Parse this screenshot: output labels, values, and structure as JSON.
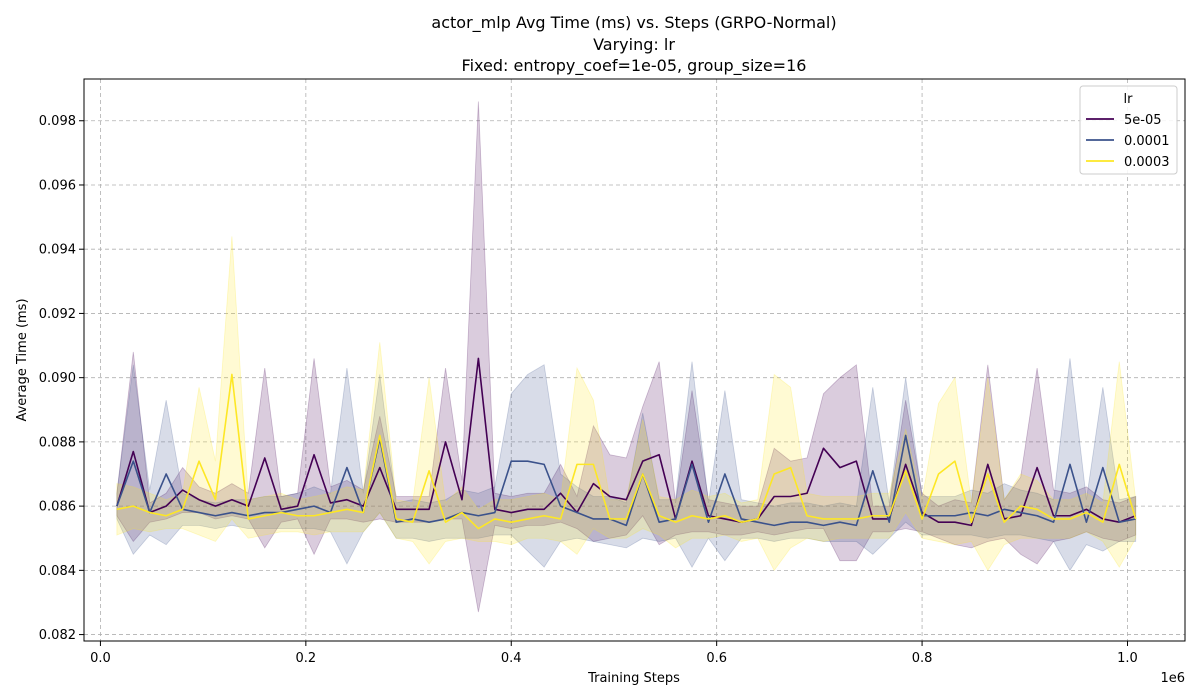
{
  "chart_data": {
    "type": "line",
    "title_lines": [
      "actor_mlp Avg Time (ms) vs. Steps (GRPO-Normal)",
      "Varying: lr",
      "Fixed: entropy_coef=1e-05, group_size=16"
    ],
    "xlabel": "Training Steps",
    "ylabel": "Average Time (ms)",
    "x_offset_label": "1e6",
    "xlim": [
      -0.016,
      1.056
    ],
    "ylim": [
      0.0818,
      0.0993
    ],
    "x_ticks": [
      0.0,
      0.2,
      0.4,
      0.6,
      0.8,
      1.0
    ],
    "x_tick_labels": [
      "0.0",
      "0.2",
      "0.4",
      "0.6",
      "0.8",
      "1.0"
    ],
    "y_ticks": [
      0.082,
      0.084,
      0.086,
      0.088,
      0.09,
      0.092,
      0.094,
      0.096,
      0.098
    ],
    "y_tick_labels": [
      "0.082",
      "0.084",
      "0.086",
      "0.088",
      "0.090",
      "0.092",
      "0.094",
      "0.096",
      "0.098"
    ],
    "grid": true,
    "legend": {
      "title": "lr",
      "placement": "top-right"
    },
    "x": [
      0.016,
      0.032,
      0.048,
      0.064,
      0.08,
      0.096,
      0.112,
      0.128,
      0.144,
      0.16,
      0.176,
      0.192,
      0.208,
      0.224,
      0.24,
      0.256,
      0.272,
      0.288,
      0.304,
      0.32,
      0.336,
      0.352,
      0.368,
      0.384,
      0.4,
      0.416,
      0.432,
      0.448,
      0.464,
      0.48,
      0.496,
      0.512,
      0.528,
      0.544,
      0.56,
      0.576,
      0.592,
      0.608,
      0.624,
      0.64,
      0.656,
      0.672,
      0.688,
      0.704,
      0.72,
      0.736,
      0.752,
      0.768,
      0.784,
      0.8,
      0.816,
      0.832,
      0.848,
      0.864,
      0.88,
      0.896,
      0.912,
      0.928,
      0.944,
      0.96,
      0.976,
      0.992,
      1.008
    ],
    "series": [
      {
        "name": "5e-05",
        "color": "#440154",
        "values": [
          0.086,
          0.0877,
          0.0858,
          0.086,
          0.0865,
          0.0862,
          0.086,
          0.0862,
          0.086,
          0.0875,
          0.0859,
          0.086,
          0.0876,
          0.0861,
          0.0862,
          0.086,
          0.0872,
          0.0859,
          0.0859,
          0.0859,
          0.088,
          0.0862,
          0.0906,
          0.0859,
          0.0858,
          0.0859,
          0.0859,
          0.0864,
          0.0858,
          0.0867,
          0.0863,
          0.0862,
          0.0874,
          0.0876,
          0.0856,
          0.0874,
          0.0857,
          0.0856,
          0.0855,
          0.0856,
          0.0863,
          0.0863,
          0.0864,
          0.0878,
          0.0872,
          0.0874,
          0.0856,
          0.0856,
          0.0873,
          0.0858,
          0.0855,
          0.0855,
          0.0854,
          0.0873,
          0.0856,
          0.0857,
          0.0872,
          0.0857,
          0.0857,
          0.0859,
          0.0856,
          0.0855,
          0.0857
        ],
        "lower": [
          0.0857,
          0.0849,
          0.0855,
          0.0856,
          0.0858,
          0.0858,
          0.0856,
          0.0857,
          0.0856,
          0.0847,
          0.0855,
          0.0856,
          0.0845,
          0.0856,
          0.0856,
          0.0855,
          0.0856,
          0.0855,
          0.0855,
          0.0855,
          0.0856,
          0.0856,
          0.0827,
          0.0854,
          0.0853,
          0.0854,
          0.0854,
          0.0855,
          0.0853,
          0.0849,
          0.085,
          0.0851,
          0.0857,
          0.0848,
          0.0851,
          0.0852,
          0.0852,
          0.0851,
          0.0851,
          0.0852,
          0.0851,
          0.0852,
          0.0853,
          0.0853,
          0.0843,
          0.0843,
          0.0852,
          0.0852,
          0.0853,
          0.0852,
          0.085,
          0.0848,
          0.0847,
          0.0849,
          0.085,
          0.0845,
          0.0842,
          0.0849,
          0.085,
          0.0852,
          0.085,
          0.0849,
          0.0851
        ],
        "upper": [
          0.0864,
          0.0908,
          0.0861,
          0.0864,
          0.0872,
          0.0866,
          0.0864,
          0.0867,
          0.0864,
          0.0903,
          0.0863,
          0.0864,
          0.0906,
          0.0866,
          0.0868,
          0.0865,
          0.0888,
          0.0863,
          0.0863,
          0.0863,
          0.0903,
          0.0868,
          0.0986,
          0.0864,
          0.0863,
          0.0864,
          0.0864,
          0.0873,
          0.0863,
          0.0885,
          0.0876,
          0.0875,
          0.0891,
          0.0905,
          0.0861,
          0.0896,
          0.0862,
          0.0861,
          0.086,
          0.086,
          0.0878,
          0.0874,
          0.0875,
          0.0895,
          0.09,
          0.0904,
          0.086,
          0.086,
          0.0893,
          0.0864,
          0.086,
          0.0862,
          0.0861,
          0.0904,
          0.0862,
          0.0869,
          0.0903,
          0.0865,
          0.0864,
          0.0866,
          0.0862,
          0.0861,
          0.0863
        ]
      },
      {
        "name": "0.0001",
        "color": "#3b528b",
        "values": [
          0.086,
          0.0874,
          0.0858,
          0.087,
          0.0859,
          0.0858,
          0.0857,
          0.0858,
          0.0857,
          0.0858,
          0.0858,
          0.0859,
          0.086,
          0.0858,
          0.0872,
          0.0858,
          0.0881,
          0.0855,
          0.0856,
          0.0855,
          0.0856,
          0.0858,
          0.0857,
          0.0858,
          0.0874,
          0.0874,
          0.0873,
          0.086,
          0.0858,
          0.0856,
          0.0856,
          0.0854,
          0.087,
          0.0855,
          0.0856,
          0.0873,
          0.0855,
          0.087,
          0.0856,
          0.0855,
          0.0854,
          0.0855,
          0.0855,
          0.0854,
          0.0855,
          0.0854,
          0.0871,
          0.0855,
          0.0882,
          0.0857,
          0.0857,
          0.0857,
          0.0858,
          0.0857,
          0.0859,
          0.0858,
          0.0857,
          0.0855,
          0.0873,
          0.0855,
          0.0872,
          0.0855,
          0.0856
        ],
        "lower": [
          0.0856,
          0.0845,
          0.0851,
          0.0848,
          0.0854,
          0.0854,
          0.0853,
          0.0854,
          0.0853,
          0.0853,
          0.0853,
          0.0853,
          0.0853,
          0.0852,
          0.0842,
          0.0852,
          0.0858,
          0.085,
          0.085,
          0.0849,
          0.085,
          0.085,
          0.085,
          0.0851,
          0.0851,
          0.0846,
          0.0841,
          0.0849,
          0.085,
          0.0849,
          0.0848,
          0.0847,
          0.085,
          0.0849,
          0.085,
          0.0841,
          0.085,
          0.0843,
          0.085,
          0.085,
          0.0849,
          0.085,
          0.085,
          0.0849,
          0.0849,
          0.0849,
          0.0845,
          0.085,
          0.0855,
          0.0851,
          0.0851,
          0.0851,
          0.0851,
          0.085,
          0.0851,
          0.0851,
          0.085,
          0.0849,
          0.084,
          0.0848,
          0.0846,
          0.0849,
          0.0849
        ],
        "upper": [
          0.0864,
          0.0904,
          0.0865,
          0.0893,
          0.0864,
          0.0862,
          0.0861,
          0.0862,
          0.0862,
          0.0863,
          0.0863,
          0.0864,
          0.0866,
          0.0864,
          0.0903,
          0.0864,
          0.0901,
          0.0861,
          0.0862,
          0.0861,
          0.0862,
          0.0865,
          0.0864,
          0.0866,
          0.0895,
          0.0901,
          0.0904,
          0.087,
          0.0866,
          0.0863,
          0.0863,
          0.0861,
          0.0889,
          0.0862,
          0.0862,
          0.0905,
          0.0861,
          0.0896,
          0.0862,
          0.0861,
          0.086,
          0.0861,
          0.0861,
          0.086,
          0.0861,
          0.086,
          0.0897,
          0.0861,
          0.09,
          0.0863,
          0.0863,
          0.0863,
          0.0865,
          0.0864,
          0.0867,
          0.0865,
          0.0864,
          0.0862,
          0.0906,
          0.0862,
          0.0897,
          0.0862,
          0.0863
        ]
      },
      {
        "name": "0.0003",
        "color": "#fde725",
        "values": [
          0.0859,
          0.086,
          0.0858,
          0.0857,
          0.0859,
          0.0874,
          0.0862,
          0.0901,
          0.0856,
          0.0857,
          0.0858,
          0.0857,
          0.0857,
          0.0858,
          0.0859,
          0.0858,
          0.0882,
          0.0856,
          0.0855,
          0.0871,
          0.0855,
          0.0858,
          0.0853,
          0.0856,
          0.0855,
          0.0856,
          0.0857,
          0.0856,
          0.0873,
          0.0873,
          0.0856,
          0.0856,
          0.087,
          0.0857,
          0.0855,
          0.0857,
          0.0856,
          0.0857,
          0.0855,
          0.0856,
          0.087,
          0.0872,
          0.0857,
          0.0856,
          0.0856,
          0.0856,
          0.0857,
          0.0857,
          0.0871,
          0.0856,
          0.087,
          0.0874,
          0.0855,
          0.087,
          0.0855,
          0.086,
          0.0859,
          0.0856,
          0.0856,
          0.0858,
          0.0855,
          0.0873,
          0.0856
        ],
        "lower": [
          0.0851,
          0.0853,
          0.0852,
          0.0853,
          0.0853,
          0.0851,
          0.0849,
          0.0856,
          0.085,
          0.0851,
          0.0852,
          0.0852,
          0.0851,
          0.0852,
          0.0852,
          0.0852,
          0.0858,
          0.085,
          0.0849,
          0.0842,
          0.0849,
          0.085,
          0.0849,
          0.0849,
          0.0848,
          0.085,
          0.085,
          0.0849,
          0.0845,
          0.0853,
          0.085,
          0.085,
          0.0853,
          0.0851,
          0.0847,
          0.085,
          0.085,
          0.0851,
          0.0849,
          0.085,
          0.084,
          0.0847,
          0.085,
          0.0849,
          0.085,
          0.085,
          0.085,
          0.085,
          0.0858,
          0.085,
          0.0849,
          0.0848,
          0.0849,
          0.084,
          0.0848,
          0.085,
          0.085,
          0.085,
          0.085,
          0.0852,
          0.0849,
          0.0841,
          0.085
        ],
        "upper": [
          0.0867,
          0.0866,
          0.0864,
          0.0862,
          0.0864,
          0.0897,
          0.0874,
          0.0944,
          0.0862,
          0.0863,
          0.0864,
          0.0862,
          0.0863,
          0.0864,
          0.0866,
          0.0865,
          0.0911,
          0.0862,
          0.0861,
          0.09,
          0.0861,
          0.0866,
          0.0859,
          0.0862,
          0.0862,
          0.0863,
          0.0864,
          0.0862,
          0.0903,
          0.0893,
          0.0862,
          0.0862,
          0.0887,
          0.0863,
          0.0862,
          0.0865,
          0.0863,
          0.0864,
          0.0861,
          0.0862,
          0.0901,
          0.0897,
          0.0864,
          0.0863,
          0.0863,
          0.0863,
          0.0864,
          0.0864,
          0.0884,
          0.0862,
          0.0892,
          0.09,
          0.0861,
          0.09,
          0.0862,
          0.087,
          0.0868,
          0.0862,
          0.0862,
          0.0864,
          0.0861,
          0.0905,
          0.0862
        ]
      }
    ]
  }
}
